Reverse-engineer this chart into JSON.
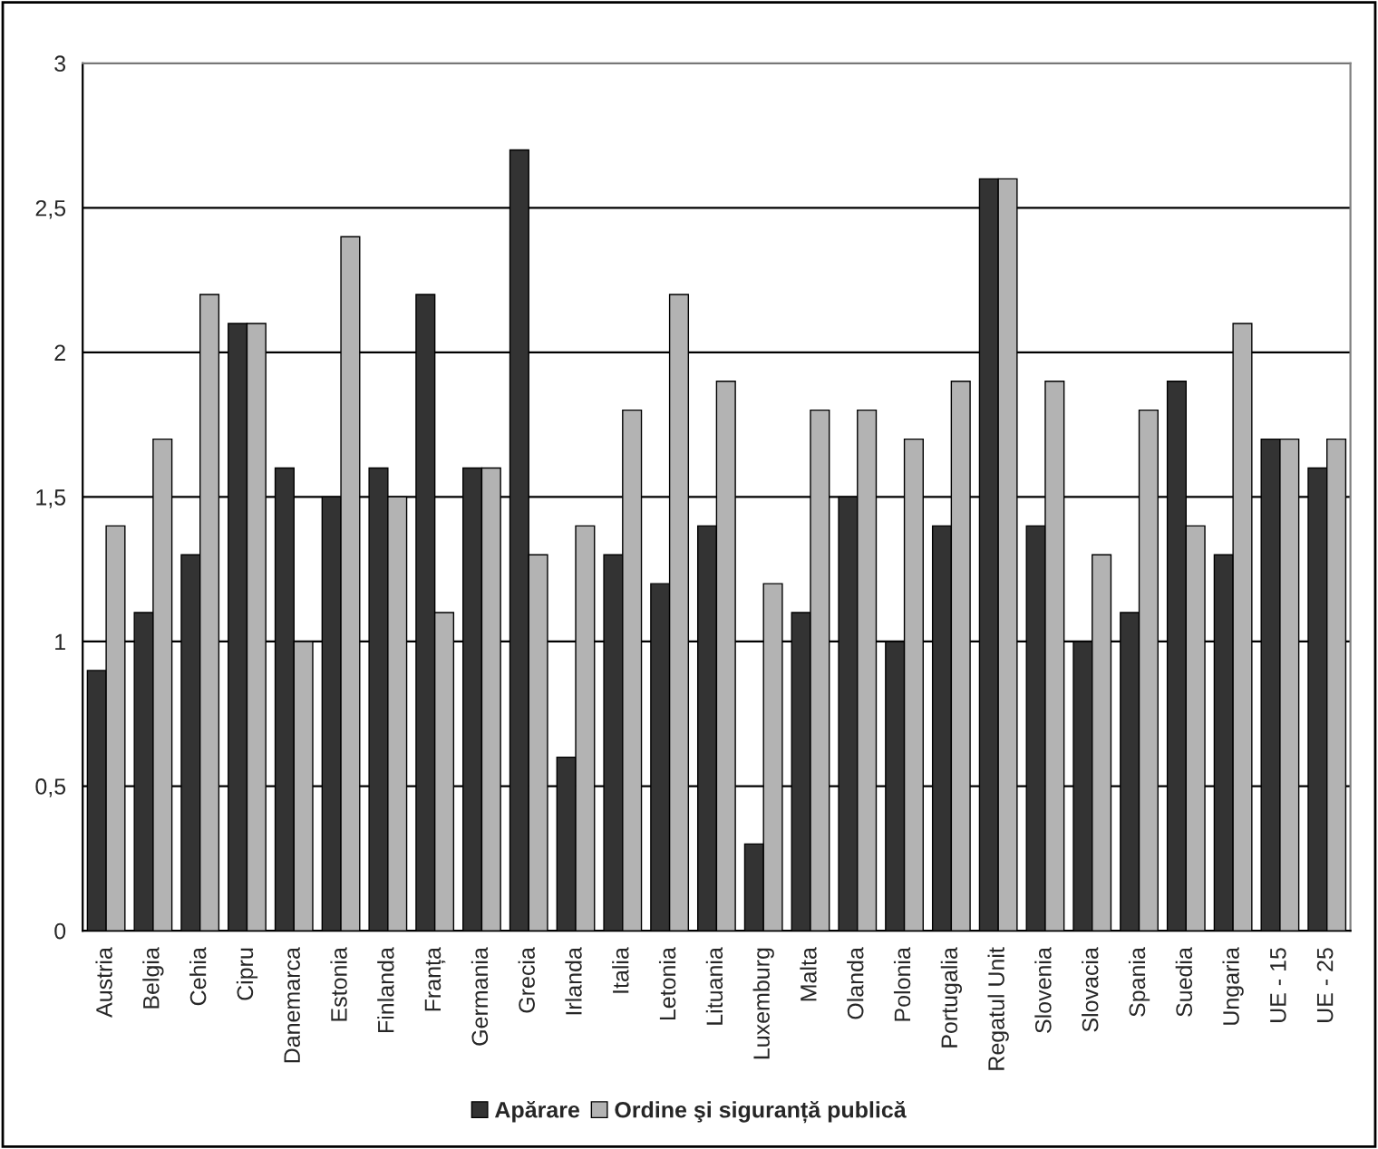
{
  "chart_data": {
    "type": "bar",
    "categories": [
      "Austria",
      "Belgia",
      "Cehia",
      "Cipru",
      "Danemarca",
      "Estonia",
      "Finlanda",
      "Franța",
      "Germania",
      "Grecia",
      "Irlanda",
      "Italia",
      "Letonia",
      "Lituania",
      "Luxemburg",
      "Malta",
      "Olanda",
      "Polonia",
      "Portugalia",
      "Regatul Unit",
      "Slovenia",
      "Slovacia",
      "Spania",
      "Suedia",
      "Ungaria",
      "UE - 15",
      "UE - 25"
    ],
    "series": [
      {
        "name": "Apărare",
        "color": "#333333",
        "values": [
          0.9,
          1.1,
          1.3,
          2.1,
          1.6,
          1.5,
          1.6,
          2.2,
          1.6,
          2.7,
          0.6,
          1.3,
          1.2,
          1.4,
          0.3,
          1.1,
          1.5,
          1.0,
          1.4,
          2.6,
          1.4,
          1.0,
          1.1,
          1.9,
          1.3,
          1.7,
          1.6
        ]
      },
      {
        "name": "Ordine şi siguranță publică",
        "color": "#b3b3b3",
        "values": [
          1.4,
          1.7,
          2.2,
          2.1,
          1.0,
          2.4,
          1.5,
          1.1,
          1.6,
          1.3,
          1.4,
          1.8,
          2.2,
          1.9,
          1.2,
          1.8,
          1.8,
          1.7,
          1.9,
          2.6,
          1.9,
          1.3,
          1.8,
          1.4,
          2.1,
          1.7,
          1.7
        ]
      }
    ],
    "ylim": [
      0,
      3
    ],
    "yticks": [
      0,
      {
        "value": 0.5,
        "label": "0,5"
      },
      1,
      {
        "value": 1.5,
        "label": "1,5"
      },
      2,
      {
        "value": 2.5,
        "label": "2,5"
      },
      3
    ],
    "grid": "y",
    "legend": "bottom"
  }
}
